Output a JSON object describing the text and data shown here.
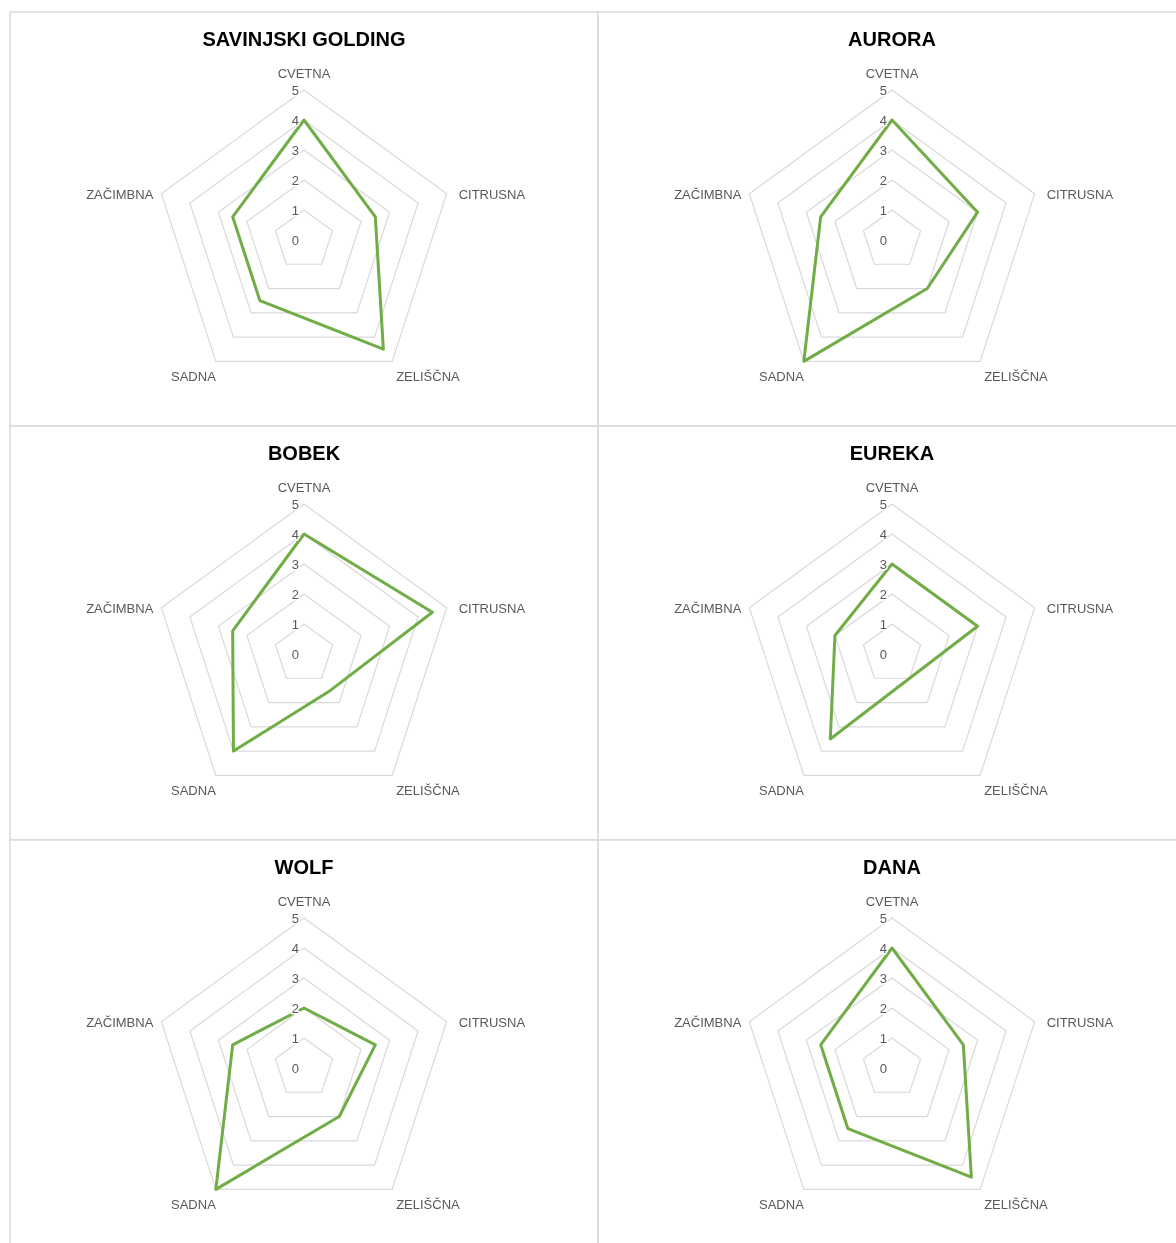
{
  "chart_data": [
    {
      "type": "radar",
      "title": "SAVINJSKI GOLDING",
      "categories": [
        "CVETNA",
        "CITRUSNA",
        "ZELIŠČNA",
        "SADNA",
        "ZAČIMBNA"
      ],
      "series": [
        {
          "color": "#70ad47",
          "values": [
            4,
            2.5,
            4.5,
            2.5,
            2.5
          ]
        }
      ],
      "ylim": [
        0,
        5
      ],
      "yticks": [
        0,
        1,
        2,
        3,
        4,
        5
      ],
      "grid": true
    },
    {
      "type": "radar",
      "title": "AURORA",
      "categories": [
        "CVETNA",
        "CITRUSNA",
        "ZELIŠČNA",
        "SADNA",
        "ZAČIMBNA"
      ],
      "series": [
        {
          "color": "#70ad47",
          "values": [
            4,
            3,
            2,
            5,
            2.5
          ]
        }
      ],
      "ylim": [
        0,
        5
      ],
      "yticks": [
        0,
        1,
        2,
        3,
        4,
        5
      ],
      "grid": true
    },
    {
      "type": "radar",
      "title": "BOBEK",
      "categories": [
        "CVETNA",
        "CITRUSNA",
        "ZELIŠČNA",
        "SADNA",
        "ZAČIMBNA"
      ],
      "series": [
        {
          "color": "#70ad47",
          "values": [
            4,
            4.5,
            1.5,
            4,
            2.5
          ]
        }
      ],
      "ylim": [
        0,
        5
      ],
      "yticks": [
        0,
        1,
        2,
        3,
        4,
        5
      ],
      "grid": true
    },
    {
      "type": "radar",
      "title": "EUREKA",
      "categories": [
        "CVETNA",
        "CITRUSNA",
        "ZELIŠČNA",
        "SADNA",
        "ZAČIMBNA"
      ],
      "series": [
        {
          "color": "#70ad47",
          "values": [
            3,
            3,
            1,
            3.5,
            2
          ]
        }
      ],
      "ylim": [
        0,
        5
      ],
      "yticks": [
        0,
        1,
        2,
        3,
        4,
        5
      ],
      "grid": true
    },
    {
      "type": "radar",
      "title": "WOLF",
      "categories": [
        "CVETNA",
        "CITRUSNA",
        "ZELIŠČNA",
        "SADNA",
        "ZAČIMBNA"
      ],
      "series": [
        {
          "color": "#70ad47",
          "values": [
            2,
            2.5,
            2,
            5,
            2.5
          ]
        }
      ],
      "ylim": [
        0,
        5
      ],
      "yticks": [
        0,
        1,
        2,
        3,
        4,
        5
      ],
      "grid": true
    },
    {
      "type": "radar",
      "title": "DANA",
      "categories": [
        "CVETNA",
        "CITRUSNA",
        "ZELIŠČNA",
        "SADNA",
        "ZAČIMBNA"
      ],
      "series": [
        {
          "color": "#70ad47",
          "values": [
            4,
            2.5,
            4.5,
            2.5,
            2.5
          ]
        }
      ],
      "ylim": [
        0,
        5
      ],
      "yticks": [
        0,
        1,
        2,
        3,
        4,
        5
      ],
      "grid": true
    }
  ]
}
